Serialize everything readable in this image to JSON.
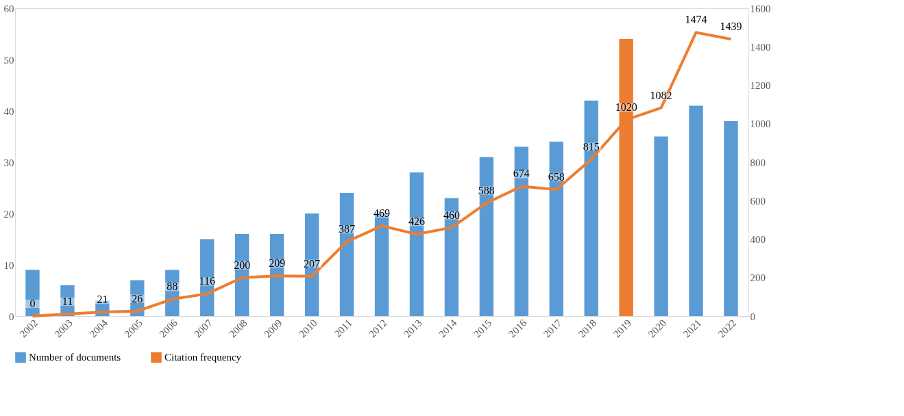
{
  "chart_data": {
    "type": "bar",
    "categories": [
      "2002",
      "2003",
      "2004",
      "2005",
      "2006",
      "2007",
      "2008",
      "2009",
      "2010",
      "2011",
      "2012",
      "2013",
      "2014",
      "2015",
      "2016",
      "2017",
      "2018",
      "2019",
      "2020",
      "2021",
      "2022"
    ],
    "series": [
      {
        "name": "Number of documents",
        "color": "#5b9bd5",
        "colors": [
          "#5b9bd5",
          "#5b9bd5",
          "#5b9bd5",
          "#5b9bd5",
          "#5b9bd5",
          "#5b9bd5",
          "#5b9bd5",
          "#5b9bd5",
          "#5b9bd5",
          "#5b9bd5",
          "#5b9bd5",
          "#5b9bd5",
          "#5b9bd5",
          "#5b9bd5",
          "#5b9bd5",
          "#5b9bd5",
          "#5b9bd5",
          "#ed7d31",
          "#5b9bd5",
          "#5b9bd5",
          "#5b9bd5"
        ],
        "values": [
          9,
          6,
          3,
          7,
          9,
          15,
          16,
          16,
          20,
          24,
          20,
          28,
          23,
          31,
          33,
          34,
          42,
          54,
          35,
          41,
          38
        ]
      },
      {
        "name": "Citation frequency",
        "type": "line",
        "axis": "y2",
        "color": "#ed7d31",
        "values": [
          0,
          11,
          21,
          26,
          88,
          116,
          200,
          209,
          207,
          387,
          469,
          426,
          460,
          588,
          674,
          658,
          815,
          1020,
          1082,
          1474,
          1439
        ],
        "value_labels": [
          "0",
          "11",
          "21",
          "26",
          "88",
          "116",
          "200",
          "209",
          "207",
          "387",
          "469",
          "426",
          "460",
          "588",
          "674",
          "658",
          "815",
          "1020",
          "1082",
          "1474",
          "1439"
        ]
      }
    ],
    "ylim": [
      0,
      60
    ],
    "yticks": [
      0,
      10,
      20,
      30,
      40,
      50,
      60
    ],
    "y2lim": [
      0,
      1600
    ],
    "y2ticks": [
      0,
      200,
      400,
      600,
      800,
      1000,
      1200,
      1400,
      1600
    ],
    "legend": "bottom",
    "grid": false,
    "marker": "none",
    "line_style": "solid"
  }
}
